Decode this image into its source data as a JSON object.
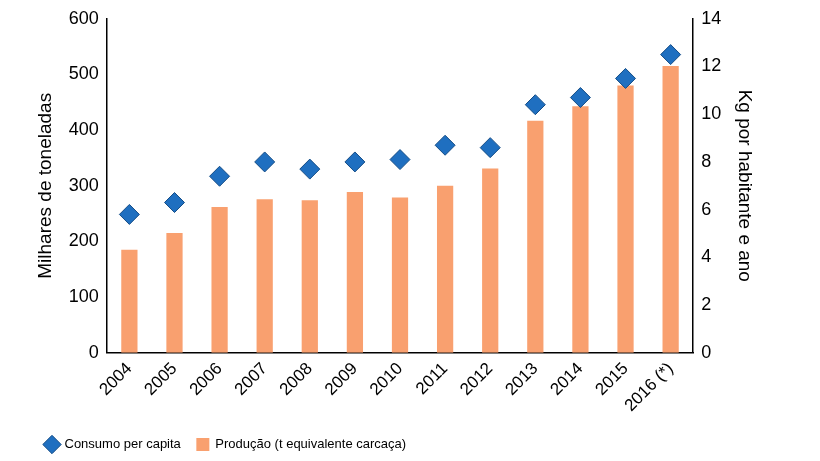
{
  "chart_data": {
    "type": "bar",
    "categories": [
      "2004",
      "2005",
      "2006",
      "2007",
      "2008",
      "2009",
      "2010",
      "2011",
      "2012",
      "2013",
      "2014",
      "2015",
      "2016 (*)"
    ],
    "series": [
      {
        "name": "Produção (t equivalente carcaça)",
        "type": "bar",
        "color": "#f9a06f",
        "values": [
          185,
          215,
          262,
          276,
          274,
          289,
          279,
          300,
          331,
          417,
          443,
          480,
          515
        ]
      },
      {
        "name": "Consumo per capita",
        "type": "scatter",
        "color": "#1f6fc0",
        "marker": "diamond",
        "axis": "y2",
        "values": [
          5.8,
          6.3,
          7.4,
          8.0,
          7.7,
          8.0,
          8.1,
          8.7,
          8.6,
          10.4,
          10.7,
          11.5,
          12.5
        ]
      }
    ],
    "y_label": "Milhares de toneladas",
    "y2_label": "Kg por habitante e ano",
    "ylim": [
      0,
      600
    ],
    "yticks": [
      0,
      100,
      200,
      300,
      400,
      500,
      600
    ],
    "y2lim": [
      0,
      14
    ],
    "y2ticks": [
      0,
      2,
      4,
      6,
      8,
      10,
      12,
      14
    ],
    "grid": false,
    "legend": "bottom"
  }
}
